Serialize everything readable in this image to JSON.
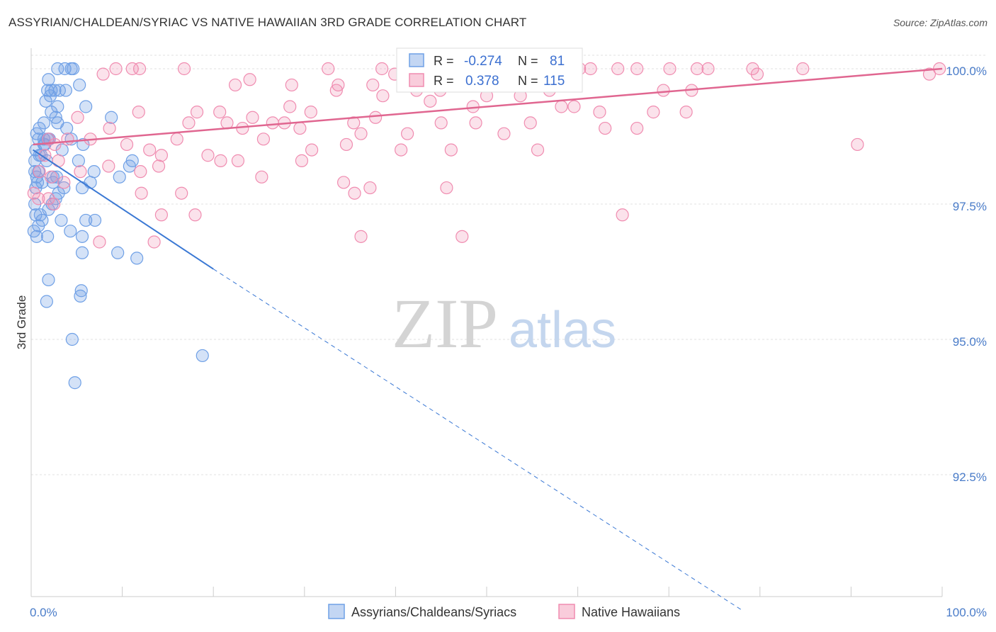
{
  "header": {
    "title": "ASSYRIAN/CHALDEAN/SYRIAC VS NATIVE HAWAIIAN 3RD GRADE CORRELATION CHART",
    "source": "Source: ZipAtlas.com"
  },
  "watermark": {
    "zip": "ZIP",
    "atlas": "atlas"
  },
  "legend_box": {
    "rows": [
      {
        "r_label": "R = ",
        "r_value": "-0.274",
        "n_label": "N = ",
        "n_value": "81",
        "color": "#6fa0e6"
      },
      {
        "r_label": "R = ",
        "r_value": "0.378",
        "n_label": "N = ",
        "n_value": "115",
        "color": "#f08cb0"
      }
    ]
  },
  "chart_data": {
    "type": "scatter",
    "title": "ASSYRIAN/CHALDEAN/SYRIAC VS NATIVE HAWAIIAN 3RD GRADE CORRELATION CHART",
    "xlabel": "",
    "ylabel": "3rd Grade",
    "xlim": [
      0,
      100
    ],
    "ylim": [
      90.0,
      100.35
    ],
    "x_tick_labels": [
      "0.0%",
      "100.0%"
    ],
    "y_ticks": [
      {
        "value": 100.0,
        "label": "100.0%"
      },
      {
        "value": 97.5,
        "label": "97.5%"
      },
      {
        "value": 95.0,
        "label": "95.0%"
      },
      {
        "value": 92.5,
        "label": "92.5%"
      }
    ],
    "grid": true,
    "legend_position": "bottom-center",
    "series": [
      {
        "name": "Assyrians/Chaldeans/Syriacs",
        "color": "#6fa0e6",
        "line_color": "#3a78d4",
        "r": -0.274,
        "n": 81,
        "trend": {
          "x0": 0.2,
          "y0": 98.5,
          "x1": 20.0,
          "y1": 96.3,
          "dash_to_x": 78.0,
          "dash_to_y": 90.0
        },
        "points": [
          [
            2.9,
            100.0
          ],
          [
            3.7,
            100.0
          ],
          [
            4.4,
            100.0
          ],
          [
            4.6,
            100.0
          ],
          [
            1.9,
            99.8
          ],
          [
            1.8,
            99.6
          ],
          [
            2.2,
            99.6
          ],
          [
            3.1,
            99.6
          ],
          [
            3.8,
            99.6
          ],
          [
            5.3,
            99.7
          ],
          [
            1.6,
            99.4
          ],
          [
            2.1,
            99.5
          ],
          [
            2.9,
            99.3
          ],
          [
            6.0,
            99.3
          ],
          [
            2.2,
            99.2
          ],
          [
            2.7,
            99.1
          ],
          [
            8.8,
            99.1
          ],
          [
            1.4,
            99.0
          ],
          [
            0.9,
            98.9
          ],
          [
            2.9,
            99.0
          ],
          [
            3.9,
            98.9
          ],
          [
            0.6,
            98.8
          ],
          [
            1.4,
            98.7
          ],
          [
            2.0,
            98.7
          ],
          [
            0.8,
            98.7
          ],
          [
            1.4,
            98.6
          ],
          [
            1.8,
            98.7
          ],
          [
            5.7,
            98.6
          ],
          [
            4.4,
            98.7
          ],
          [
            0.5,
            98.5
          ],
          [
            0.9,
            98.4
          ],
          [
            1.7,
            98.3
          ],
          [
            5.2,
            98.3
          ],
          [
            11.1,
            98.3
          ],
          [
            10.8,
            98.2
          ],
          [
            0.4,
            98.1
          ],
          [
            6.9,
            98.1
          ],
          [
            0.6,
            98.0
          ],
          [
            2.8,
            98.0
          ],
          [
            9.7,
            98.0
          ],
          [
            1.2,
            97.9
          ],
          [
            2.4,
            97.9
          ],
          [
            6.5,
            97.9
          ],
          [
            0.5,
            97.8
          ],
          [
            3.6,
            97.8
          ],
          [
            5.6,
            97.8
          ],
          [
            2.7,
            97.6
          ],
          [
            2.3,
            97.5
          ],
          [
            1.9,
            97.4
          ],
          [
            0.5,
            97.3
          ],
          [
            3.3,
            97.2
          ],
          [
            6.0,
            97.2
          ],
          [
            7.0,
            97.2
          ],
          [
            1.2,
            97.2
          ],
          [
            0.8,
            97.1
          ],
          [
            4.3,
            97.0
          ],
          [
            1.8,
            96.9
          ],
          [
            0.6,
            96.9
          ],
          [
            5.6,
            96.9
          ],
          [
            9.5,
            96.6
          ],
          [
            5.6,
            96.6
          ],
          [
            11.6,
            96.5
          ],
          [
            1.9,
            96.1
          ],
          [
            5.5,
            95.9
          ],
          [
            5.4,
            95.8
          ],
          [
            1.7,
            95.7
          ],
          [
            4.5,
            95.0
          ],
          [
            18.8,
            94.7
          ],
          [
            4.8,
            94.2
          ],
          [
            0.3,
            97.0
          ],
          [
            0.4,
            97.5
          ],
          [
            1.1,
            98.4
          ],
          [
            1.5,
            98.6
          ],
          [
            2.6,
            99.6
          ],
          [
            3.4,
            98.5
          ],
          [
            0.8,
            98.1
          ],
          [
            2.4,
            98.0
          ],
          [
            0.4,
            98.3
          ],
          [
            1.0,
            97.3
          ],
          [
            3.0,
            97.7
          ],
          [
            0.7,
            97.9
          ]
        ]
      },
      {
        "name": "Native Hawaiians",
        "color": "#f08cb0",
        "line_color": "#e06690",
        "r": 0.378,
        "n": 115,
        "trend": {
          "x0": 0.2,
          "y0": 98.6,
          "x1": 100.0,
          "y1": 100.0
        },
        "points": [
          [
            9.3,
            100.0
          ],
          [
            11.1,
            100.0
          ],
          [
            11.9,
            100.0
          ],
          [
            16.8,
            100.0
          ],
          [
            32.6,
            100.0
          ],
          [
            38.5,
            100.0
          ],
          [
            43.6,
            100.0
          ],
          [
            47.5,
            100.0
          ],
          [
            52.8,
            100.0
          ],
          [
            60.2,
            100.0
          ],
          [
            61.4,
            100.0
          ],
          [
            64.4,
            100.0
          ],
          [
            66.5,
            100.0
          ],
          [
            70.1,
            100.0
          ],
          [
            73.1,
            100.0
          ],
          [
            74.3,
            100.0
          ],
          [
            79.2,
            100.0
          ],
          [
            84.7,
            100.0
          ],
          [
            99.7,
            100.0
          ],
          [
            7.9,
            99.9
          ],
          [
            39.9,
            99.9
          ],
          [
            79.7,
            99.9
          ],
          [
            98.6,
            99.9
          ],
          [
            22.4,
            99.7
          ],
          [
            24.0,
            99.8
          ],
          [
            33.7,
            99.7
          ],
          [
            37.5,
            99.7
          ],
          [
            42.3,
            99.6
          ],
          [
            44.9,
            99.6
          ],
          [
            56.6,
            99.7
          ],
          [
            69.4,
            99.6
          ],
          [
            72.5,
            99.6
          ],
          [
            38.6,
            99.5
          ],
          [
            43.8,
            99.4
          ],
          [
            48.5,
            99.3
          ],
          [
            58.2,
            99.3
          ],
          [
            59.6,
            99.3
          ],
          [
            62.4,
            99.2
          ],
          [
            71.9,
            99.2
          ],
          [
            11.8,
            99.2
          ],
          [
            20.7,
            99.2
          ],
          [
            28.4,
            99.3
          ],
          [
            30.7,
            99.2
          ],
          [
            24.3,
            99.1
          ],
          [
            26.5,
            99.0
          ],
          [
            35.4,
            99.0
          ],
          [
            37.8,
            99.1
          ],
          [
            45.0,
            99.0
          ],
          [
            54.8,
            99.0
          ],
          [
            17.3,
            99.0
          ],
          [
            21.5,
            99.0
          ],
          [
            27.8,
            99.0
          ],
          [
            63.0,
            98.9
          ],
          [
            66.5,
            98.9
          ],
          [
            5.1,
            99.1
          ],
          [
            8.6,
            98.9
          ],
          [
            23.2,
            98.9
          ],
          [
            29.5,
            98.9
          ],
          [
            36.2,
            98.8
          ],
          [
            41.3,
            98.8
          ],
          [
            51.9,
            98.8
          ],
          [
            4.0,
            98.7
          ],
          [
            6.5,
            98.7
          ],
          [
            16.0,
            98.7
          ],
          [
            25.5,
            98.7
          ],
          [
            1.9,
            98.7
          ],
          [
            2.6,
            98.6
          ],
          [
            10.5,
            98.6
          ],
          [
            13.0,
            98.5
          ],
          [
            30.8,
            98.5
          ],
          [
            34.6,
            98.6
          ],
          [
            40.6,
            98.5
          ],
          [
            46.1,
            98.5
          ],
          [
            55.6,
            98.5
          ],
          [
            90.7,
            98.6
          ],
          [
            14.3,
            98.4
          ],
          [
            19.4,
            98.4
          ],
          [
            20.8,
            98.3
          ],
          [
            22.7,
            98.3
          ],
          [
            29.7,
            98.3
          ],
          [
            1.5,
            98.4
          ],
          [
            3.0,
            98.3
          ],
          [
            8.5,
            98.2
          ],
          [
            14.0,
            98.2
          ],
          [
            0.9,
            98.1
          ],
          [
            2.2,
            98.0
          ],
          [
            5.4,
            98.1
          ],
          [
            12.0,
            98.1
          ],
          [
            25.3,
            98.0
          ],
          [
            3.6,
            97.9
          ],
          [
            34.3,
            97.9
          ],
          [
            37.2,
            97.8
          ],
          [
            45.6,
            97.8
          ],
          [
            12.1,
            97.7
          ],
          [
            16.5,
            97.7
          ],
          [
            35.5,
            97.7
          ],
          [
            1.9,
            97.6
          ],
          [
            2.5,
            97.5
          ],
          [
            14.3,
            97.3
          ],
          [
            18.0,
            97.3
          ],
          [
            64.9,
            97.3
          ],
          [
            7.5,
            96.8
          ],
          [
            13.5,
            96.8
          ],
          [
            36.2,
            96.9
          ],
          [
            47.3,
            96.9
          ],
          [
            0.3,
            97.7
          ],
          [
            0.8,
            97.6
          ],
          [
            28.6,
            99.7
          ],
          [
            33.5,
            99.6
          ],
          [
            48.8,
            99.0
          ],
          [
            18.2,
            99.2
          ],
          [
            50.0,
            99.5
          ],
          [
            53.7,
            99.5
          ],
          [
            68.3,
            99.2
          ],
          [
            56.9,
            99.6
          ]
        ]
      }
    ]
  }
}
